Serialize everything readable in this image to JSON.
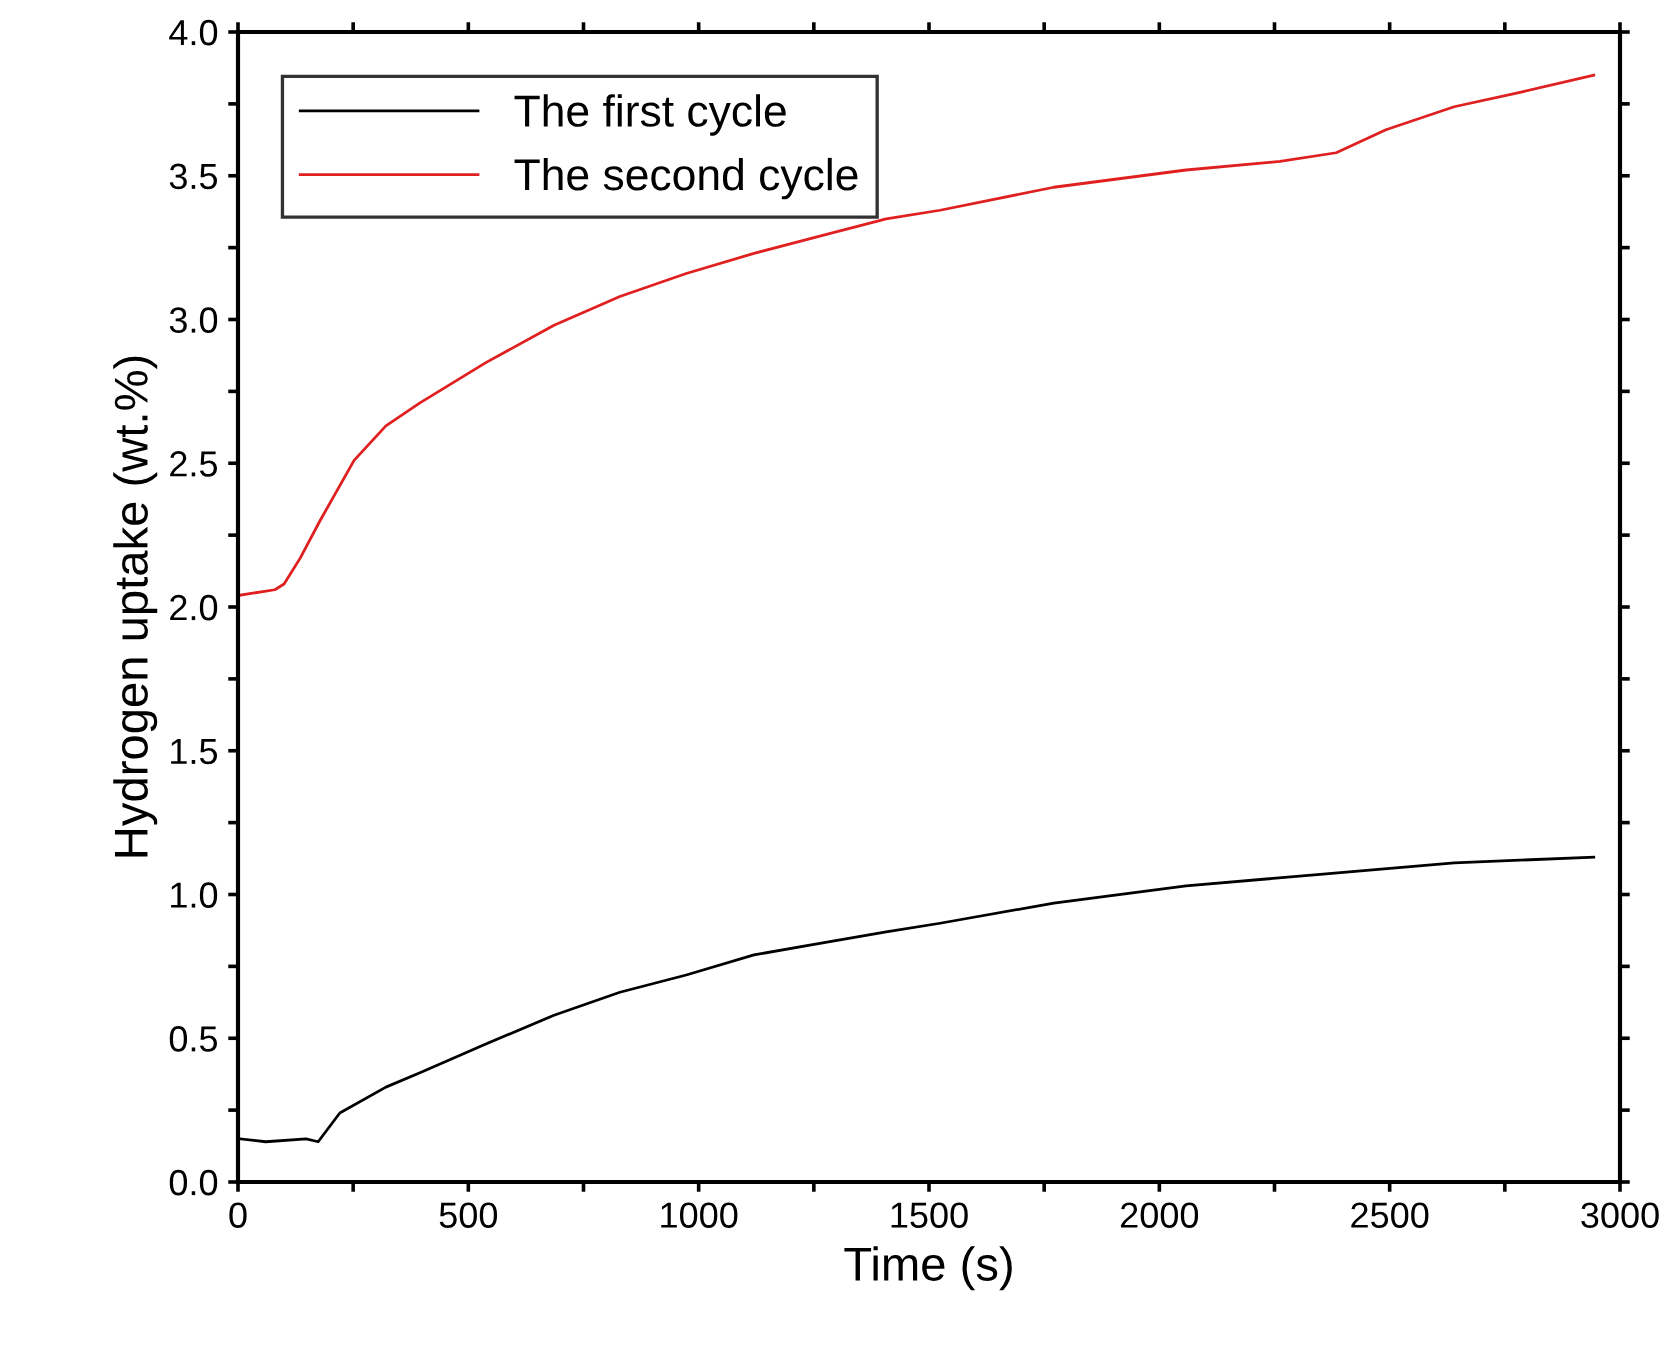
{
  "chart_data": {
    "type": "line",
    "xlabel": "Time (s)",
    "ylabel": "Hydrogen uptake (wt.%)",
    "xlim": [
      0,
      3000
    ],
    "ylim": [
      0,
      4.0
    ],
    "xticks": [
      0,
      {
        "value": 250,
        "label": null
      },
      500,
      {
        "value": 750,
        "label": null
      },
      1000,
      {
        "value": 1250,
        "label": null
      },
      1500,
      {
        "value": 1750,
        "label": null
      },
      2000,
      {
        "value": 2250,
        "label": null
      },
      2500,
      {
        "value": 2750,
        "label": null
      },
      3000
    ],
    "yticks": [
      {
        "value": 0,
        "label": "0.0"
      },
      {
        "value": 0.25,
        "label": null
      },
      {
        "value": 0.5,
        "label": "0.5"
      },
      {
        "value": 0.75,
        "label": null
      },
      {
        "value": 1.0,
        "label": "1.0"
      },
      {
        "value": 1.25,
        "label": null
      },
      {
        "value": 1.5,
        "label": "1.5"
      },
      {
        "value": 1.75,
        "label": null
      },
      {
        "value": 2.0,
        "label": "2.0"
      },
      {
        "value": 2.25,
        "label": null
      },
      {
        "value": 2.5,
        "label": "2.5"
      },
      {
        "value": 2.75,
        "label": null
      },
      {
        "value": 3.0,
        "label": "3.0"
      },
      {
        "value": 3.25,
        "label": null
      },
      {
        "value": 3.5,
        "label": "3.5"
      },
      {
        "value": 3.75,
        "label": null
      },
      {
        "value": 4.0,
        "label": "4.0"
      }
    ],
    "legend": "top left",
    "grid": false,
    "marker": "none",
    "line_style": "solid",
    "series": [
      {
        "name": "The first cycle",
        "color": "#000000",
        "x": [
          4,
          60,
          148,
          174,
          221,
          321,
          395,
          538,
          686,
          829,
          973,
          1120,
          1263,
          1407,
          1524,
          1771,
          2058,
          2349,
          2640,
          2943
        ],
        "values": [
          0.15,
          0.14,
          0.15,
          0.14,
          0.24,
          0.33,
          0.38,
          0.48,
          0.58,
          0.66,
          0.72,
          0.79,
          0.83,
          0.87,
          0.9,
          0.97,
          1.03,
          1.07,
          1.11,
          1.13
        ]
      },
      {
        "name": "The second cycle",
        "color": "#e02020",
        "x": [
          0,
          80,
          100,
          135,
          178,
          252,
          321,
          395,
          538,
          686,
          829,
          973,
          1120,
          1263,
          1407,
          1524,
          1771,
          2058,
          2262,
          2384,
          2492,
          2640,
          2783,
          2943
        ],
        "values": [
          2.04,
          2.06,
          2.08,
          2.17,
          2.3,
          2.51,
          2.63,
          2.71,
          2.85,
          2.98,
          3.08,
          3.16,
          3.23,
          3.29,
          3.35,
          3.38,
          3.46,
          3.52,
          3.55,
          3.58,
          3.66,
          3.74,
          3.79,
          3.85
        ]
      }
    ]
  }
}
